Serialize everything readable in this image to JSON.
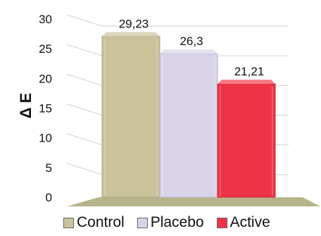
{
  "chart_data": {
    "type": "bar",
    "categories": [
      "Control",
      "Placebo",
      "Active"
    ],
    "values": [
      29.23,
      26.3,
      21.21
    ],
    "data_labels": [
      "29,23",
      "26,3",
      "21,21"
    ],
    "ylabel": "Δ E",
    "ylim": [
      0,
      30
    ],
    "yticks": [
      "0",
      "5",
      "10",
      "15",
      "20",
      "25",
      "30"
    ],
    "colors": [
      "#c9c29a",
      "#d9d3ea",
      "#ee3344"
    ],
    "floor_color": "#b8b48a",
    "legend_position": "bottom",
    "style": "3d"
  }
}
